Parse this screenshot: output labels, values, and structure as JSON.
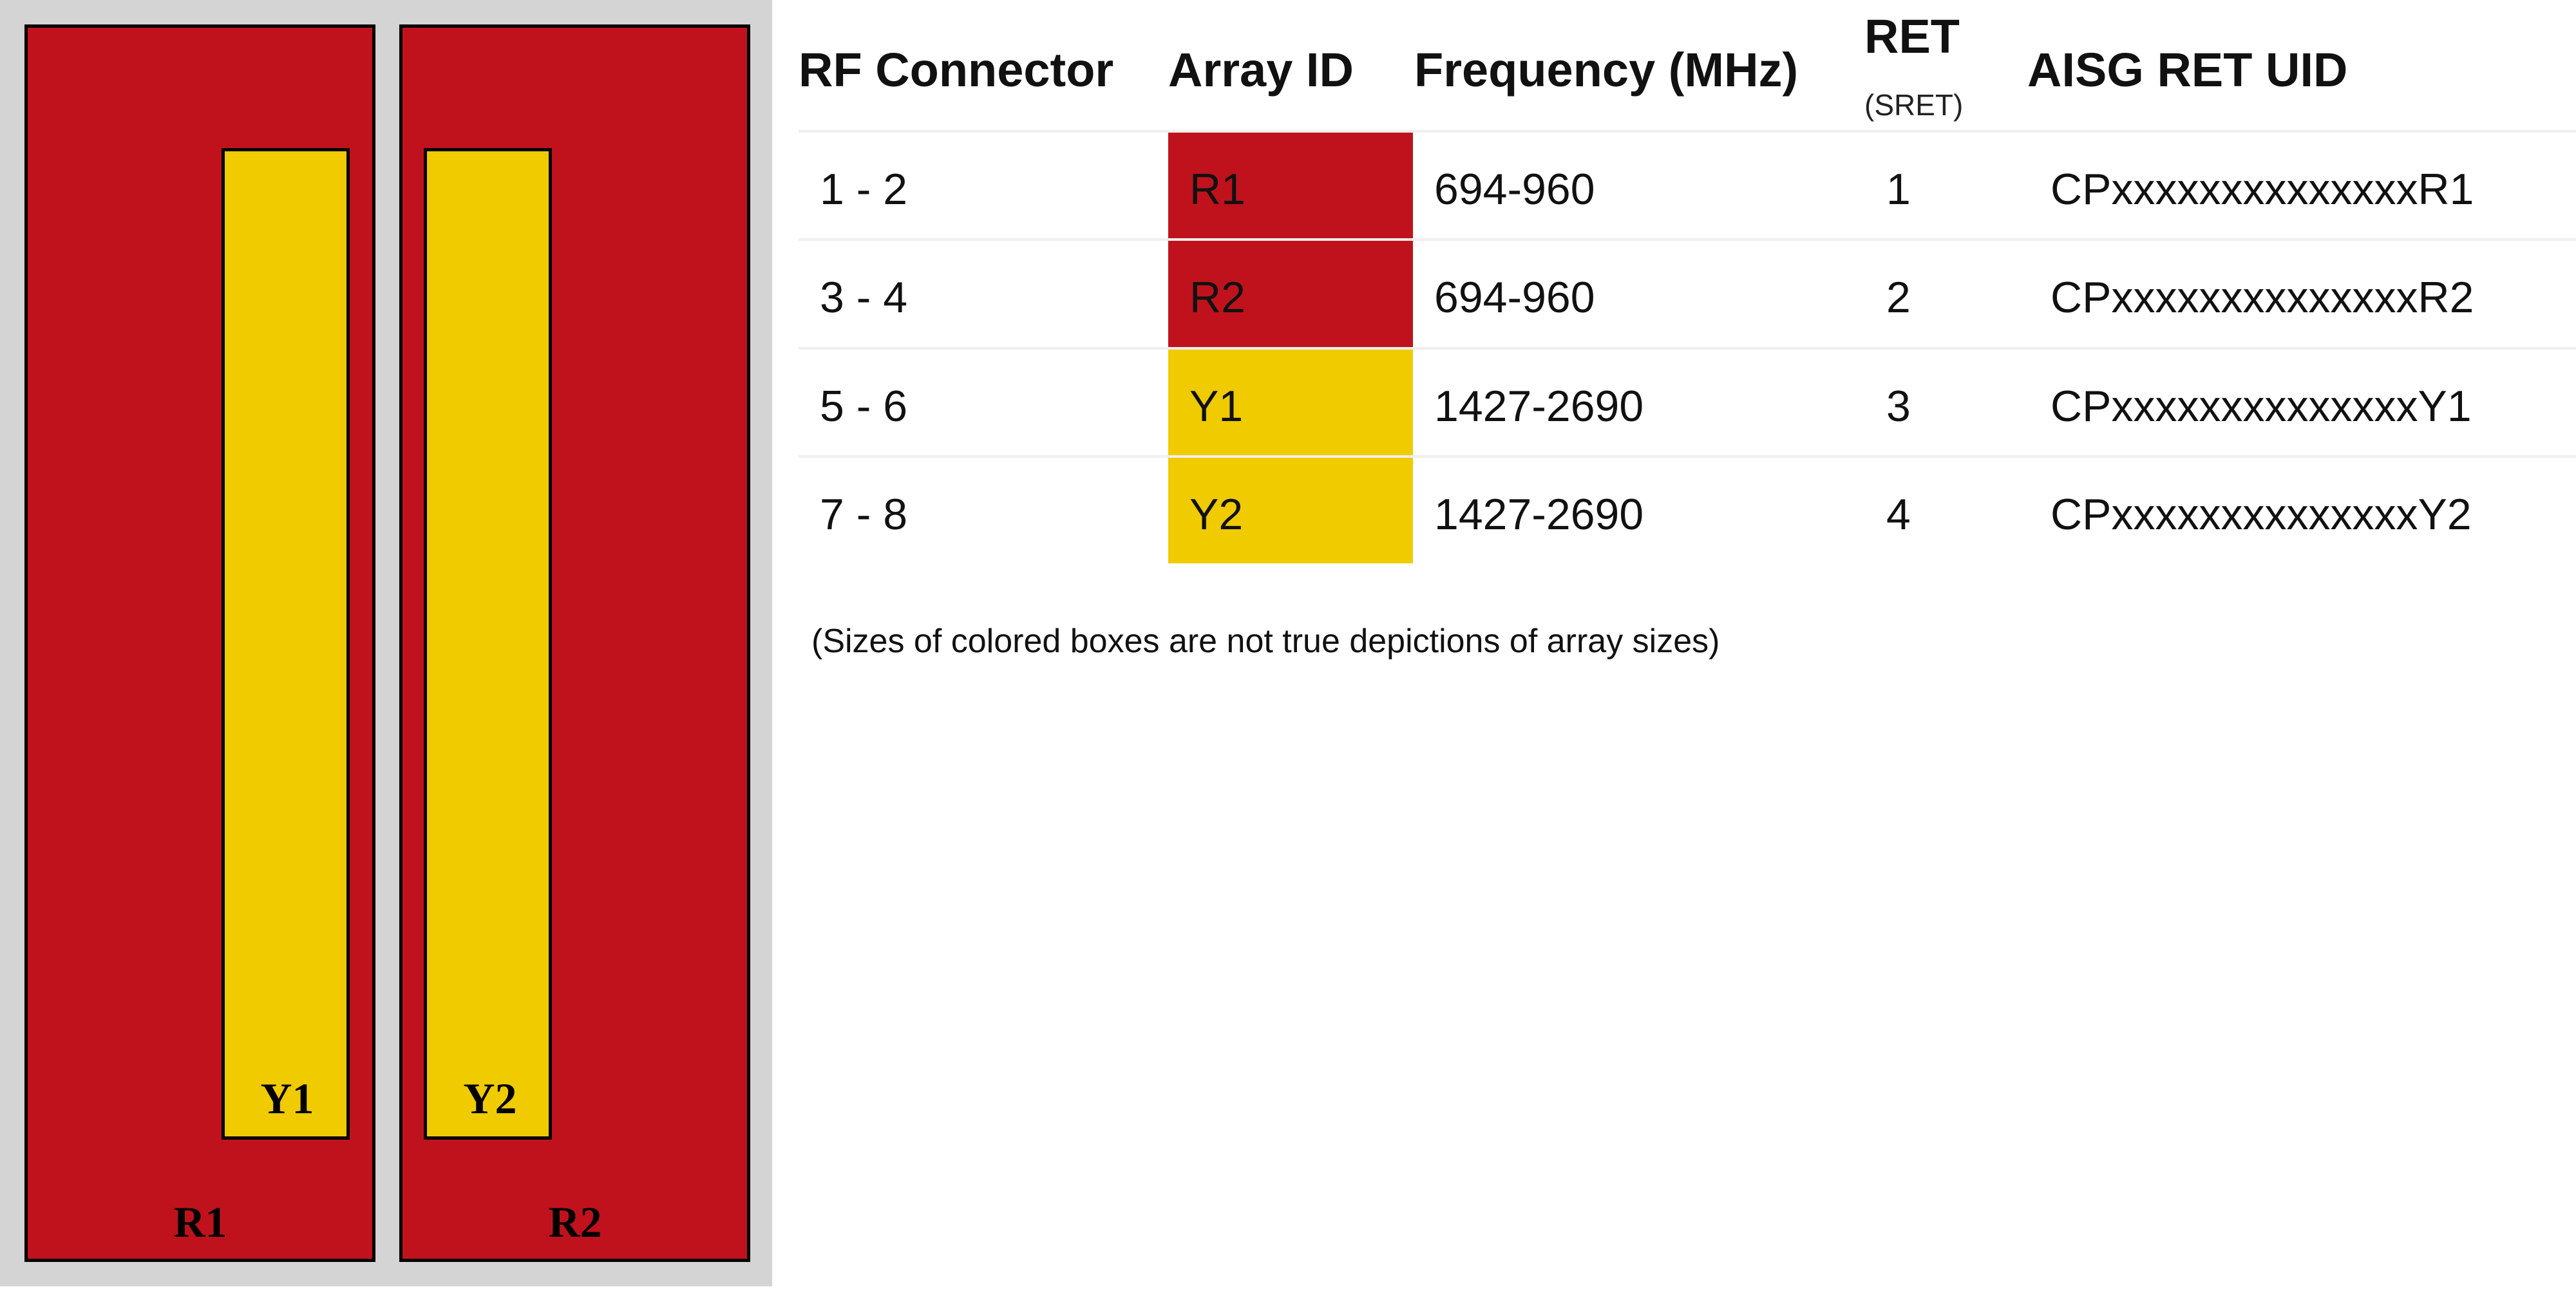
{
  "diagram": {
    "arrays": [
      {
        "id": "R1",
        "color": "#c0121c"
      },
      {
        "id": "R2",
        "color": "#c0121c"
      },
      {
        "id": "Y1",
        "color": "#efcb00"
      },
      {
        "id": "Y2",
        "color": "#efcb00"
      }
    ]
  },
  "table": {
    "headers": {
      "rf_connector": "RF Connector",
      "array_id": "Array ID",
      "frequency": "Frequency (MHz)",
      "ret": "RET",
      "ret_sub": "(SRET)",
      "uid": "AISG RET UID"
    },
    "rows": [
      {
        "rf": "1 - 2",
        "array": "R1",
        "freq": "694-960",
        "ret": "1",
        "uid": "CPxxxxxxxxxxxxxxR1",
        "color": "#c0121c"
      },
      {
        "rf": "3 - 4",
        "array": "R2",
        "freq": "694-960",
        "ret": "2",
        "uid": "CPxxxxxxxxxxxxxxR2",
        "color": "#c0121c"
      },
      {
        "rf": "5 - 6",
        "array": "Y1",
        "freq": "1427-2690",
        "ret": "3",
        "uid": "CPxxxxxxxxxxxxxxY1",
        "color": "#efcb00"
      },
      {
        "rf": "7 - 8",
        "array": "Y2",
        "freq": "1427-2690",
        "ret": "4",
        "uid": "CPxxxxxxxxxxxxxxY2",
        "color": "#efcb00"
      }
    ]
  },
  "footnote": "(Sizes of colored boxes are not true depictions of array sizes)"
}
